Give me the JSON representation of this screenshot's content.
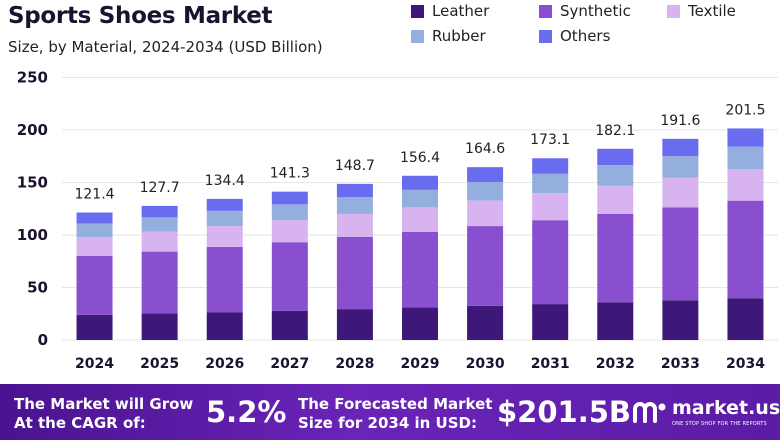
{
  "header": {
    "title": "Sports Shoes Market",
    "subtitle": "Size, by Material, 2024-2034 (USD Billion)"
  },
  "legend": [
    {
      "label": "Leather",
      "color": "#3d1878"
    },
    {
      "label": "Synthetic",
      "color": "#8a4fcf"
    },
    {
      "label": "Textile",
      "color": "#d7b4ef"
    },
    {
      "label": "Rubber",
      "color": "#94aedd"
    },
    {
      "label": "Others",
      "color": "#6a6cf0"
    }
  ],
  "chart_data": {
    "type": "bar",
    "stacked": true,
    "title": "Sports Shoes Market",
    "subtitle": "Size, by Material, 2024-2034 (USD Billion)",
    "categories": [
      "2024",
      "2025",
      "2026",
      "2027",
      "2028",
      "2029",
      "2030",
      "2031",
      "2032",
      "2033",
      "2034"
    ],
    "series": [
      {
        "name": "Leather",
        "color": "#3d1878",
        "values": [
          24,
          25.2,
          26.5,
          27.9,
          29.4,
          30.9,
          32.5,
          34.2,
          36,
          37.8,
          39.8
        ]
      },
      {
        "name": "Synthetic",
        "color": "#8a4fcf",
        "values": [
          56,
          59,
          62.1,
          65.2,
          68.7,
          72.2,
          76,
          79.9,
          84,
          88.4,
          92.9
        ]
      },
      {
        "name": "Textile",
        "color": "#d7b4ef",
        "values": [
          18,
          19,
          20,
          21,
          22,
          23.2,
          24.4,
          25.7,
          27,
          28.4,
          29.9
        ]
      },
      {
        "name": "Rubber",
        "color": "#94aedd",
        "values": [
          13,
          13.6,
          14.4,
          15.1,
          15.9,
          16.7,
          17.6,
          18.5,
          19.5,
          20.5,
          21.6
        ]
      },
      {
        "name": "Others",
        "color": "#6a6cf0",
        "values": [
          10.4,
          10.9,
          11.4,
          12.1,
          12.7,
          13.4,
          14.1,
          14.8,
          15.6,
          16.5,
          17.3
        ]
      }
    ],
    "totals": [
      121.4,
      127.7,
      134.4,
      141.3,
      148.7,
      156.4,
      164.6,
      173.1,
      182.1,
      191.6,
      201.5
    ],
    "total_labels": [
      "121.4",
      "127.7",
      "134.4",
      "141.3",
      "148.7",
      "156.4",
      "164.6",
      "173.1",
      "182.1",
      "191.6",
      "201.5"
    ],
    "y_ticks": [
      0,
      50,
      100,
      150,
      200,
      250
    ],
    "ylim": [
      0,
      250
    ],
    "grid": true,
    "legend_position": "top-right"
  },
  "footer": {
    "cagr_text": "The Market will Grow At the CAGR of:",
    "cagr_value": "5.2%",
    "forecast_text": "The Forecasted Market Size for 2034 in USD:",
    "forecast_value": "$201.5B",
    "brand_name": "market.us",
    "brand_tagline": "ONE STOP SHOP FOR THE REPORTS",
    "background_color": "#5b1ca6"
  }
}
